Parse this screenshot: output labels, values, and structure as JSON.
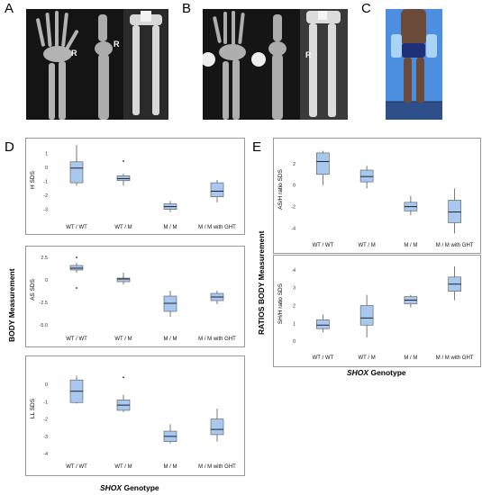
{
  "panels": {
    "a": "A",
    "b": "B",
    "c": "C",
    "d": "D",
    "e": "E"
  },
  "xray_labels": {
    "a1": "R",
    "a2": "R",
    "b1": "R"
  },
  "d_ylabel": "BODY Measurement",
  "e_ylabel": "RATIOS BODY Measurement",
  "d_xlabel_prefix": "SHOX",
  "d_xlabel_suffix": " Genotype",
  "e_xlabel_prefix": "SHOX",
  "e_xlabel_suffix": " Genotype",
  "colors": {
    "box_fill": "#a9c8ef",
    "box_stroke": "#555555",
    "whisker": "#555555",
    "median": "#222222"
  },
  "chart_data": [
    {
      "type": "box",
      "panel": "D",
      "ylabel": "H SDS",
      "categories": [
        "WT / WT",
        "WT / M",
        "M / M",
        "M / M with GHT"
      ],
      "ylim": [
        -3.6,
        1.8
      ],
      "yticks": [
        1,
        0,
        -1,
        -2,
        -3
      ],
      "ytick_labels": [
        "1",
        "0",
        "-1",
        "-2",
        "-3"
      ],
      "boxes": [
        {
          "min": -1.3,
          "q1": -1.1,
          "median": -0.05,
          "q3": 0.4,
          "max": 1.6,
          "outliers": []
        },
        {
          "min": -1.3,
          "q1": -0.95,
          "median": -0.8,
          "q3": -0.6,
          "max": -0.45,
          "outliers": [
            0.45
          ]
        },
        {
          "min": -3.2,
          "q1": -3.0,
          "median": -2.8,
          "q3": -2.6,
          "max": -2.4,
          "outliers": []
        },
        {
          "min": -2.5,
          "q1": -2.1,
          "median": -1.7,
          "q3": -1.1,
          "max": -0.9,
          "outliers": []
        }
      ]
    },
    {
      "type": "box",
      "panel": "D",
      "ylabel": "AS SDS",
      "categories": [
        "WT / WT",
        "WT / M",
        "M / M",
        "M / M with GHT"
      ],
      "ylim": [
        -5.5,
        3.3
      ],
      "yticks": [
        2.5,
        0,
        -2.5,
        -5
      ],
      "ytick_labels": [
        "2.5",
        "0",
        "-2.5",
        "-5.0"
      ],
      "boxes": [
        {
          "min": 0.8,
          "q1": 1.1,
          "median": 1.3,
          "q3": 1.6,
          "max": 1.9,
          "outliers": [
            2.5,
            -0.9
          ]
        },
        {
          "min": -0.5,
          "q1": -0.2,
          "median": 0.1,
          "q3": 0.2,
          "max": 0.8,
          "outliers": []
        },
        {
          "min": -4.1,
          "q1": -3.5,
          "median": -2.6,
          "q3": -1.8,
          "max": -1.2,
          "outliers": []
        },
        {
          "min": -2.7,
          "q1": -2.3,
          "median": -1.9,
          "q3": -1.5,
          "max": -1.2,
          "outliers": []
        }
      ]
    },
    {
      "type": "box",
      "panel": "D",
      "ylabel": "LL SDS",
      "categories": [
        "WT / WT",
        "WT / M",
        "M / M",
        "M / M with GHT"
      ],
      "ylim": [
        -4.2,
        1.4
      ],
      "yticks": [
        0,
        -1,
        -2,
        -3,
        -4
      ],
      "ytick_labels": [
        "0",
        "-1",
        "-2",
        "-3",
        "-4"
      ],
      "boxes": [
        {
          "min": -1.1,
          "q1": -1.05,
          "median": -0.4,
          "q3": 0.25,
          "max": 0.5,
          "outliers": []
        },
        {
          "min": -1.6,
          "q1": -1.5,
          "median": -1.2,
          "q3": -0.9,
          "max": -0.6,
          "outliers": [
            0.4
          ]
        },
        {
          "min": -3.4,
          "q1": -3.3,
          "median": -3.0,
          "q3": -2.7,
          "max": -2.3,
          "outliers": []
        },
        {
          "min": -3.3,
          "q1": -2.9,
          "median": -2.6,
          "q3": -2.0,
          "max": -1.4,
          "outliers": []
        }
      ]
    },
    {
      "type": "box",
      "panel": "E",
      "ylabel": "AS/H ratio SDS",
      "categories": [
        "WT / WT",
        "WT / M",
        "M / M",
        "M / M with GHT"
      ],
      "ylim": [
        -4.8,
        4.0
      ],
      "yticks": [
        2,
        0,
        -2,
        -4
      ],
      "ytick_labels": [
        "2",
        "0",
        "-2",
        "-4"
      ],
      "boxes": [
        {
          "min": 0.0,
          "q1": 1.0,
          "median": 2.2,
          "q3": 3.0,
          "max": 3.2,
          "outliers": []
        },
        {
          "min": -0.3,
          "q1": 0.3,
          "median": 0.8,
          "q3": 1.4,
          "max": 1.8,
          "outliers": []
        },
        {
          "min": -2.8,
          "q1": -2.4,
          "median": -2.0,
          "q3": -1.6,
          "max": -1.0,
          "outliers": []
        },
        {
          "min": -4.5,
          "q1": -3.5,
          "median": -2.5,
          "q3": -1.4,
          "max": -0.3,
          "outliers": []
        }
      ]
    },
    {
      "type": "box",
      "panel": "E",
      "ylabel": "SH/H ratio SDS",
      "categories": [
        "WT / WT",
        "WT / M",
        "M / M",
        "M / M with GHT"
      ],
      "ylim": [
        -0.4,
        4.6
      ],
      "yticks": [
        0,
        1,
        2,
        3,
        4
      ],
      "ytick_labels": [
        "0",
        "1",
        "2",
        "3",
        "4"
      ],
      "boxes": [
        {
          "min": 0.5,
          "q1": 0.7,
          "median": 0.9,
          "q3": 1.2,
          "max": 1.5,
          "outliers": []
        },
        {
          "min": 0.2,
          "q1": 0.9,
          "median": 1.3,
          "q3": 2.0,
          "max": 2.6,
          "outliers": []
        },
        {
          "min": 1.9,
          "q1": 2.1,
          "median": 2.3,
          "q3": 2.5,
          "max": 2.6,
          "outliers": []
        },
        {
          "min": 2.3,
          "q1": 2.8,
          "median": 3.2,
          "q3": 3.6,
          "max": 4.2,
          "outliers": []
        }
      ]
    }
  ]
}
